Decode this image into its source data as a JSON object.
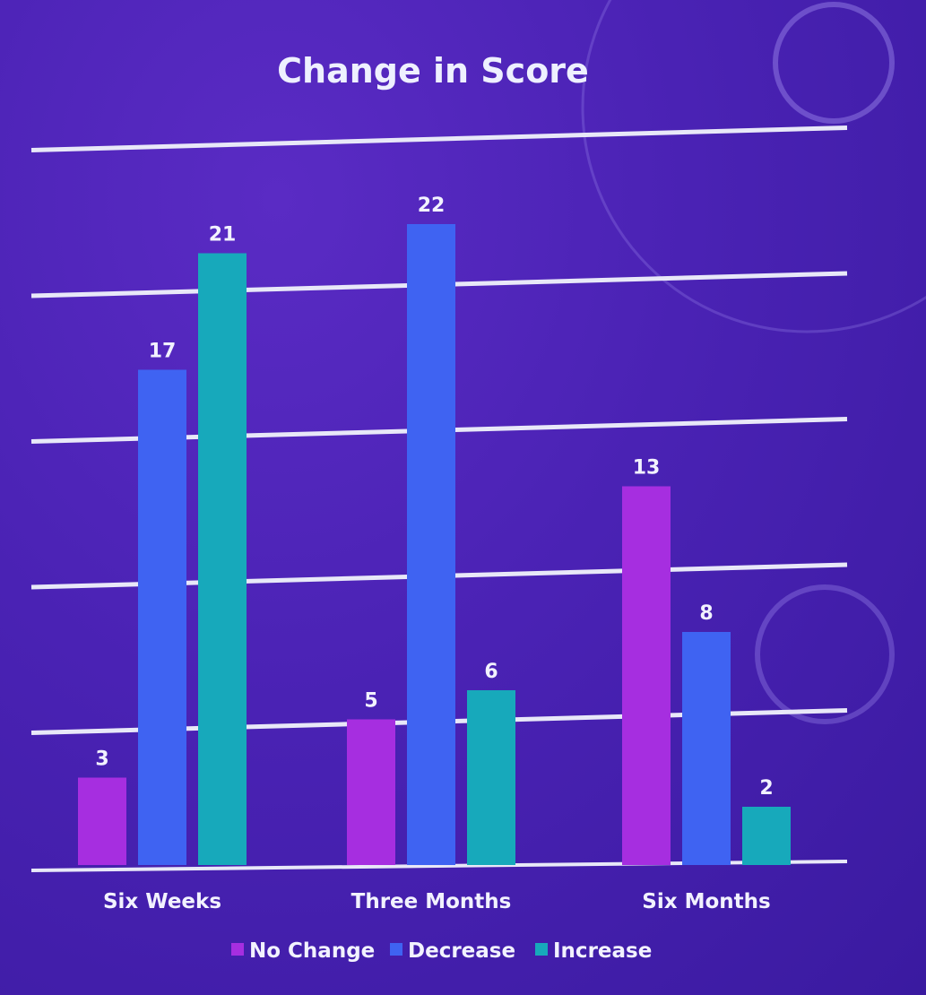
{
  "chart_data": {
    "type": "bar",
    "title": "Change in Score",
    "categories": [
      "Six Weeks",
      "Three Months",
      "Six Months"
    ],
    "series": [
      {
        "name": "No Change",
        "values": [
          3,
          5,
          13
        ],
        "color": "#a62ee0"
      },
      {
        "name": "Decrease",
        "values": [
          17,
          22,
          8
        ],
        "color": "#3f63f2"
      },
      {
        "name": "Increase",
        "values": [
          21,
          6,
          2
        ],
        "color": "#17a9bb"
      }
    ],
    "ylim": [
      0,
      25
    ],
    "grid": true,
    "legend_position": "bottom"
  }
}
